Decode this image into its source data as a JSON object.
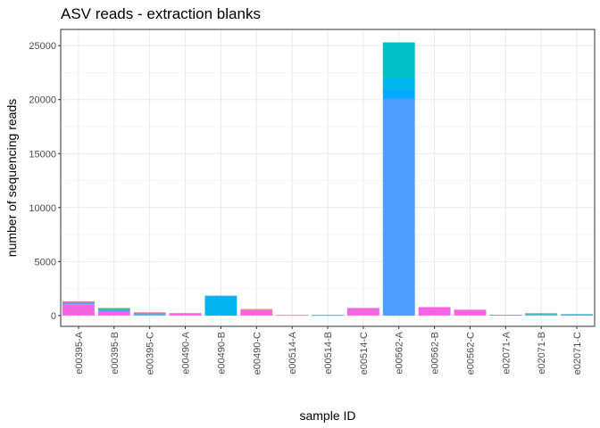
{
  "chart_data": {
    "type": "bar",
    "stacked": true,
    "title": "ASV reads - extraction blanks",
    "xlabel": "sample ID",
    "ylabel": "number of sequencing reads",
    "ylim": [
      -1000,
      26500
    ],
    "y_ticks": [
      0,
      5000,
      10000,
      15000,
      20000,
      25000
    ],
    "grid": true,
    "legend": "none",
    "categories": [
      "e00395-A",
      "e00395-B",
      "e00395-C",
      "e00490-A",
      "e00490-B",
      "e00490-C",
      "e00514-A",
      "e00514-B",
      "e00514-C",
      "e00562-A",
      "e00562-B",
      "e00562-C",
      "e02071-A",
      "e02071-B",
      "e02071-C"
    ],
    "segments": [
      [
        {
          "value": 1050,
          "color": "#F564E3"
        },
        {
          "value": 130,
          "color": "#619CFF"
        },
        {
          "value": 80,
          "color": "#00BFC4"
        },
        {
          "value": 60,
          "color": "#F8766D"
        }
      ],
      [
        {
          "value": 330,
          "color": "#F564E3"
        },
        {
          "value": 200,
          "color": "#619CFF"
        },
        {
          "value": 100,
          "color": "#00BFC4"
        },
        {
          "value": 70,
          "color": "#B79F00"
        }
      ],
      [
        {
          "value": 100,
          "color": "#F564E3"
        },
        {
          "value": 110,
          "color": "#00BFC4"
        },
        {
          "value": 90,
          "color": "#F8766D"
        }
      ],
      [
        {
          "value": 180,
          "color": "#F564E3"
        },
        {
          "value": 50,
          "color": "#C77CFF"
        }
      ],
      [
        {
          "value": 1800,
          "color": "#00B4EF"
        },
        {
          "value": 50,
          "color": "#619CFF"
        }
      ],
      [
        {
          "value": 500,
          "color": "#F564E3"
        },
        {
          "value": 100,
          "color": "#F8766D"
        }
      ],
      [
        {
          "value": 60,
          "color": "#C77CFF"
        }
      ],
      [
        {
          "value": 50,
          "color": "#00BFC4"
        }
      ],
      [
        {
          "value": 700,
          "color": "#F564E3"
        }
      ],
      [
        {
          "value": 20100,
          "color": "#4F9CFF"
        },
        {
          "value": 700,
          "color": "#00A9FF"
        },
        {
          "value": 1200,
          "color": "#00B4EF"
        },
        {
          "value": 3300,
          "color": "#00BFC4"
        }
      ],
      [
        {
          "value": 780,
          "color": "#F564E3"
        }
      ],
      [
        {
          "value": 540,
          "color": "#F564E3"
        }
      ],
      [
        {
          "value": 60,
          "color": "#00BFC4"
        }
      ],
      [
        {
          "value": 90,
          "color": "#F564E3"
        },
        {
          "value": 70,
          "color": "#00BFC4"
        },
        {
          "value": 50,
          "color": "#7CAE00"
        }
      ],
      [
        {
          "value": 70,
          "color": "#F564E3"
        },
        {
          "value": 60,
          "color": "#00BFC4"
        }
      ]
    ]
  }
}
